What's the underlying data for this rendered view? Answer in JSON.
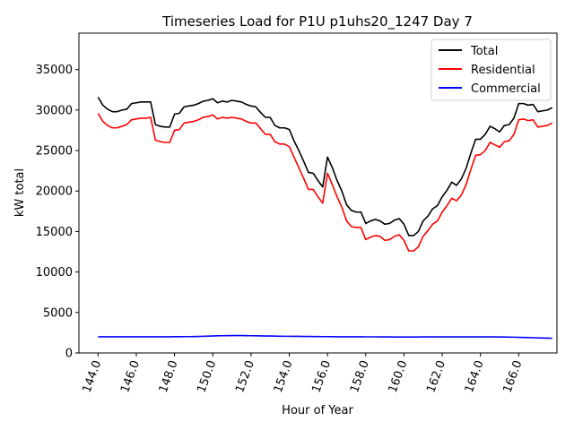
{
  "chart_data": {
    "type": "line",
    "title": "Timeseries Load for P1U p1uhs20_1247  Day 7",
    "xlabel": "Hour of Year",
    "ylabel": "kW total",
    "xlim": [
      143.0,
      168.0
    ],
    "ylim": [
      0,
      39500
    ],
    "xticks": [
      144,
      146,
      148,
      150,
      152,
      154,
      156,
      158,
      160,
      162,
      164,
      166
    ],
    "xtick_labels": [
      "144.0",
      "146.0",
      "148.0",
      "150.0",
      "152.0",
      "154.0",
      "156.0",
      "158.0",
      "160.0",
      "162.0",
      "164.0",
      "166.0"
    ],
    "yticks": [
      0,
      5000,
      10000,
      15000,
      20000,
      25000,
      30000,
      35000
    ],
    "ytick_labels": [
      "0",
      "5000",
      "10000",
      "15000",
      "20000",
      "25000",
      "30000",
      "35000"
    ],
    "legend_position": "top-right",
    "x": [
      144.0,
      144.25,
      144.5,
      144.75,
      145.0,
      145.25,
      145.5,
      145.75,
      146.0,
      146.25,
      146.5,
      146.75,
      147.0,
      147.25,
      147.5,
      147.75,
      148.0,
      148.25,
      148.5,
      148.75,
      149.0,
      149.25,
      149.5,
      149.75,
      150.0,
      150.25,
      150.5,
      150.75,
      151.0,
      151.25,
      151.5,
      151.75,
      152.0,
      152.25,
      152.5,
      152.75,
      153.0,
      153.25,
      153.5,
      153.75,
      154.0,
      154.25,
      154.5,
      154.75,
      155.0,
      155.25,
      155.5,
      155.75,
      156.0,
      156.25,
      156.5,
      156.75,
      157.0,
      157.25,
      157.5,
      157.75,
      158.0,
      158.25,
      158.5,
      158.75,
      159.0,
      159.25,
      159.5,
      159.75,
      160.0,
      160.25,
      160.5,
      160.75,
      161.0,
      161.25,
      161.5,
      161.75,
      162.0,
      162.25,
      162.5,
      162.75,
      163.0,
      163.25,
      163.5,
      163.75,
      164.0,
      164.25,
      164.5,
      164.75,
      165.0,
      165.25,
      165.5,
      165.75,
      166.0,
      166.25,
      166.5,
      166.75,
      167.0,
      167.25,
      167.5,
      167.75
    ],
    "series": [
      {
        "name": "Total",
        "color": "#000000",
        "values": [
          31600,
          30600,
          30100,
          29800,
          29800,
          30000,
          30100,
          30800,
          30900,
          31000,
          31000,
          31000,
          28200,
          28000,
          27900,
          27900,
          29500,
          29600,
          30400,
          30500,
          30600,
          30800,
          31100,
          31200,
          31400,
          30900,
          31100,
          31000,
          31200,
          31100,
          31000,
          30700,
          30500,
          30400,
          29700,
          29100,
          29100,
          28100,
          27800,
          27800,
          27600,
          26200,
          25000,
          23700,
          22300,
          22200,
          21300,
          20500,
          24200,
          22900,
          21300,
          20000,
          18300,
          17600,
          17400,
          17400,
          16000,
          16300,
          16500,
          16300,
          15900,
          16000,
          16400,
          16600,
          15900,
          14500,
          14500,
          15000,
          16300,
          16900,
          17800,
          18200,
          19300,
          20100,
          21100,
          20700,
          21500,
          22800,
          24700,
          26400,
          26400,
          27000,
          28000,
          27700,
          27300,
          28100,
          28200,
          29000,
          30800,
          30800,
          30600,
          30700,
          29800,
          29900,
          30000,
          30300
        ]
      },
      {
        "name": "Residential",
        "color": "#ff0000",
        "values": [
          29600,
          28600,
          28100,
          27800,
          27800,
          28000,
          28200,
          28800,
          28900,
          29000,
          29000,
          29100,
          26300,
          26100,
          26000,
          26000,
          27500,
          27600,
          28400,
          28500,
          28600,
          28800,
          29100,
          29200,
          29400,
          28900,
          29100,
          29000,
          29100,
          29000,
          28900,
          28600,
          28400,
          28400,
          27700,
          27000,
          27000,
          26100,
          25800,
          25800,
          25500,
          24200,
          22900,
          21600,
          20200,
          20200,
          19300,
          18500,
          22200,
          20800,
          19300,
          18000,
          16300,
          15600,
          15500,
          15500,
          14000,
          14300,
          14500,
          14400,
          13900,
          14000,
          14400,
          14600,
          13900,
          12600,
          12600,
          13100,
          14400,
          15100,
          15900,
          16300,
          17400,
          18200,
          19100,
          18800,
          19500,
          20800,
          22700,
          24400,
          24500,
          25000,
          26000,
          25700,
          25400,
          26100,
          26200,
          27000,
          28800,
          28900,
          28700,
          28800,
          27900,
          28000,
          28100,
          28400
        ]
      },
      {
        "name": "Commercial",
        "color": "#0000ff",
        "values": [
          2000,
          2000,
          2000,
          2000,
          2000,
          2000,
          2000,
          2000,
          2000,
          2000,
          2000,
          2000,
          2000,
          2000,
          2000,
          2000,
          2010,
          2010,
          2020,
          2020,
          2030,
          2040,
          2060,
          2080,
          2100,
          2120,
          2130,
          2140,
          2150,
          2150,
          2150,
          2140,
          2130,
          2120,
          2110,
          2100,
          2090,
          2080,
          2070,
          2060,
          2060,
          2050,
          2050,
          2040,
          2040,
          2030,
          2030,
          2020,
          2020,
          2010,
          2000,
          2000,
          2000,
          2000,
          2000,
          2000,
          1990,
          1990,
          1990,
          1980,
          1980,
          1980,
          1970,
          1970,
          1970,
          1970,
          1970,
          1970,
          1980,
          1980,
          1980,
          1980,
          1980,
          1980,
          1980,
          1980,
          1980,
          1980,
          1980,
          1980,
          1980,
          1980,
          1980,
          1980,
          1970,
          1970,
          1960,
          1950,
          1930,
          1920,
          1900,
          1880,
          1860,
          1850,
          1830,
          1820
        ]
      }
    ]
  }
}
